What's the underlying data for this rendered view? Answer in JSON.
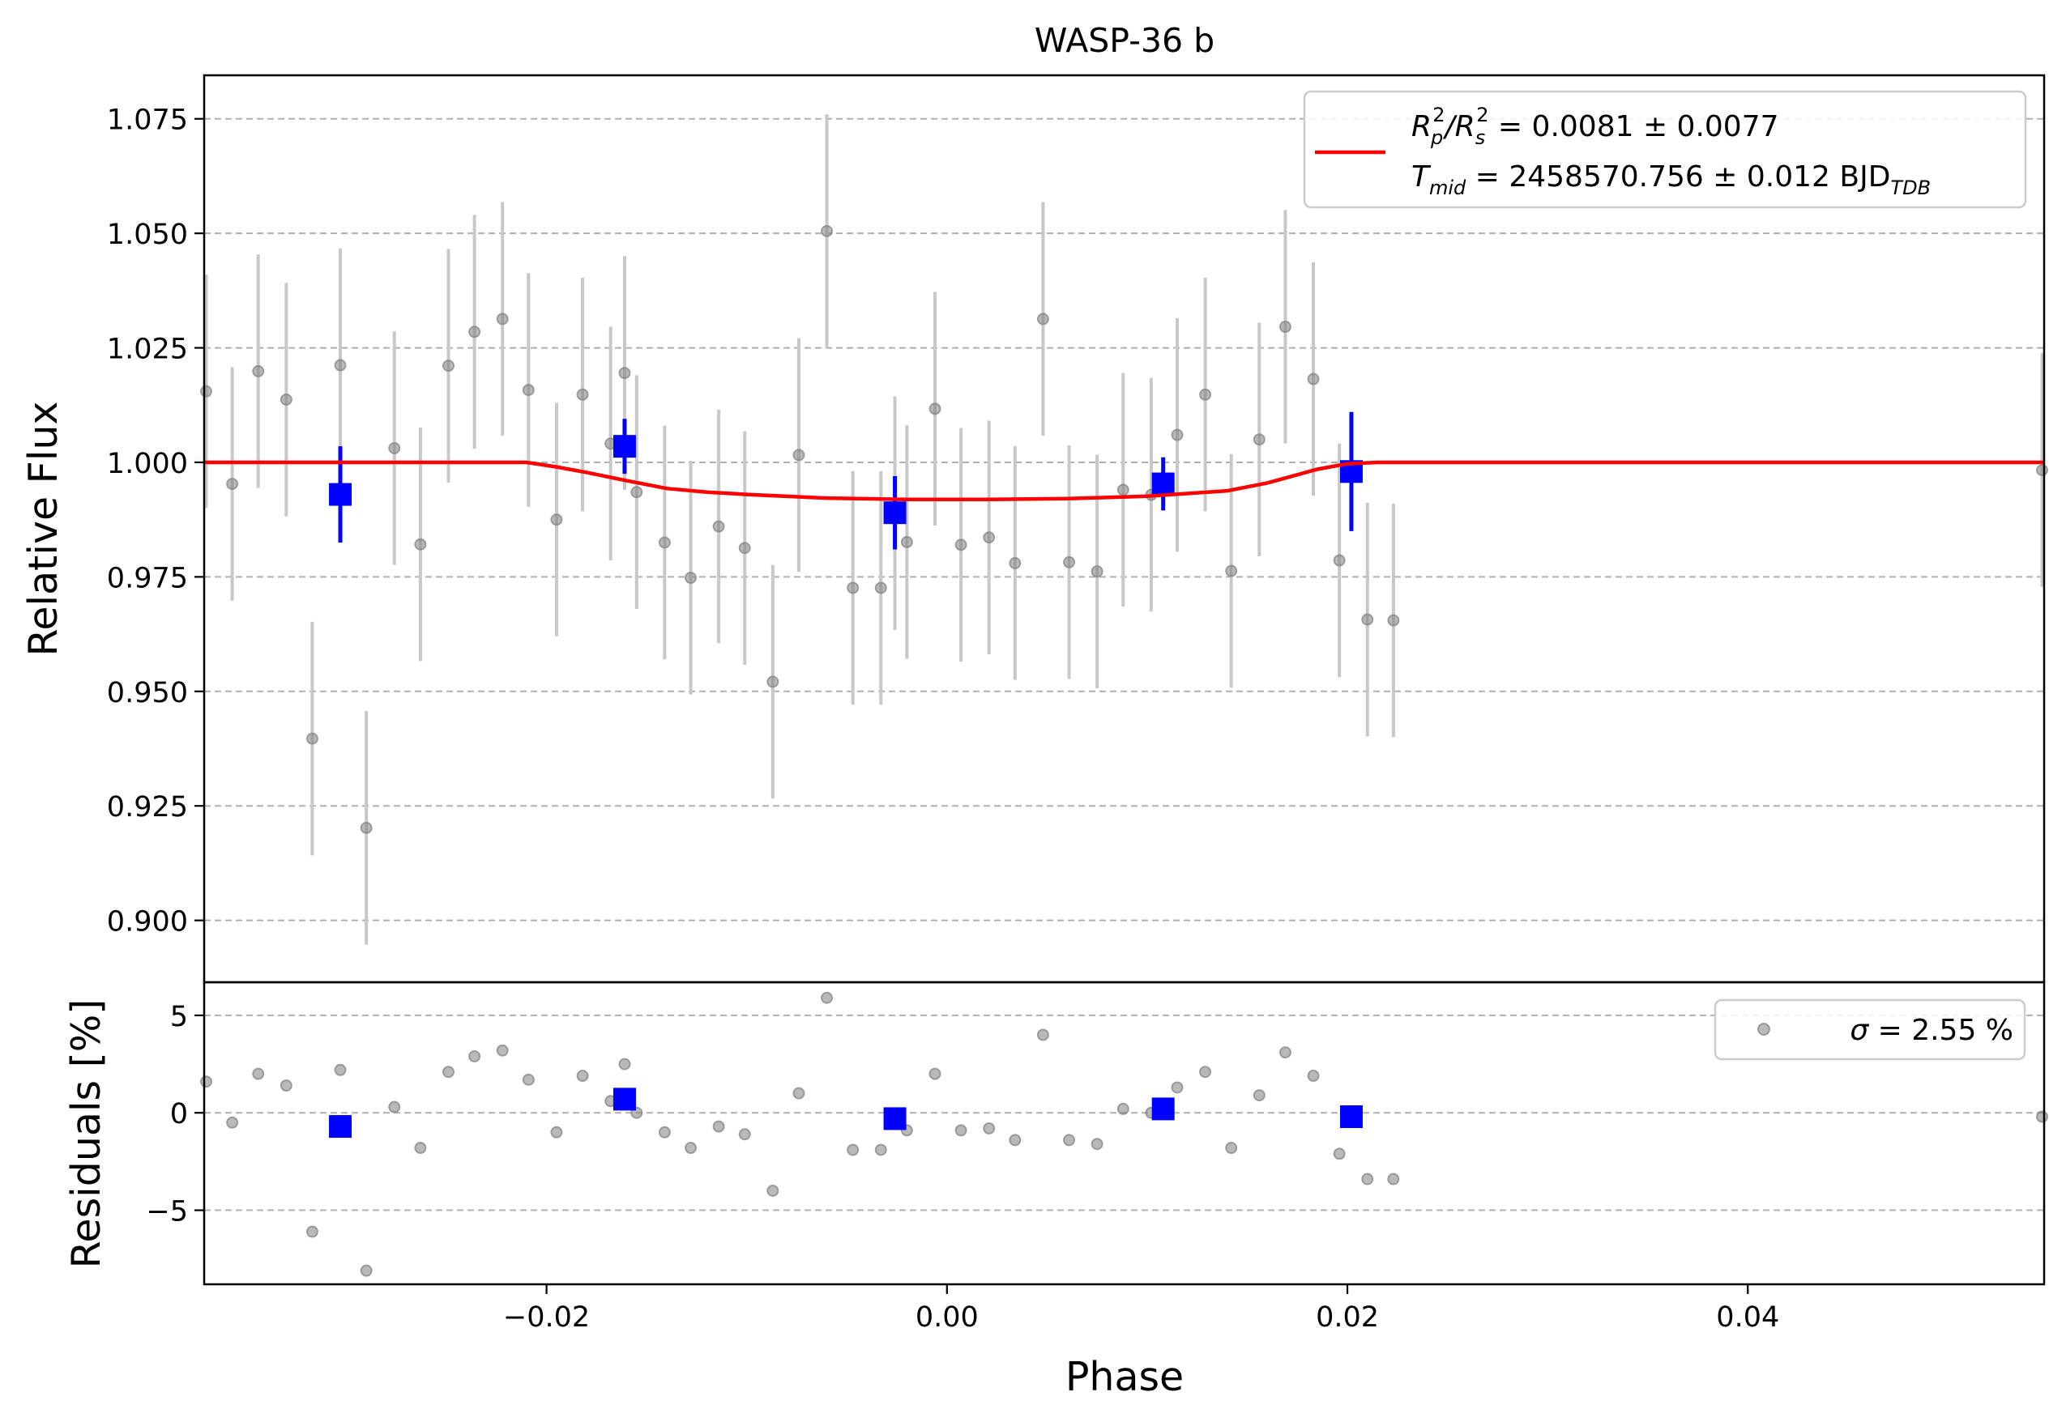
{
  "chart_data": {
    "type": "scatter",
    "title": "WASP-36 b",
    "xlabel": "Phase",
    "xlim": [
      -0.0371,
      0.0548
    ],
    "x_ticks": [
      -0.02,
      0.0,
      0.02,
      0.04
    ],
    "x_tick_labels": [
      "−0.02",
      "0.00",
      "0.02",
      "0.04"
    ],
    "top_panel": {
      "ylabel": "Relative Flux",
      "ylim": [
        0.8865,
        1.0845
      ],
      "y_ticks": [
        0.9,
        0.925,
        0.95,
        0.975,
        1.0,
        1.025,
        1.05,
        1.075
      ],
      "y_tick_labels": [
        "0.900",
        "0.925",
        "0.950",
        "0.975",
        "1.000",
        "1.025",
        "1.050",
        "1.075"
      ],
      "grid": "horizontal-dashed",
      "legend_position": "top-right",
      "legend": {
        "line1_parts": [
          "R",
          "p",
          "2",
          "/R",
          "s",
          "2",
          " = 0.0081 ± 0.0077"
        ],
        "line2_parts": [
          "T",
          "mid",
          " = 2458570.756 ± 0.012 BJD",
          "TDB"
        ]
      },
      "colors": {
        "data": "#808080",
        "errorbar": "#c8c8c8",
        "binned": "#0000ff",
        "model": "#ff0000"
      },
      "data": {
        "x": [
          -0.037,
          -0.0357,
          -0.0344,
          -0.033,
          -0.0317,
          -0.0303,
          -0.029,
          -0.0276,
          -0.0263,
          -0.0249,
          -0.0236,
          -0.0222,
          -0.0209,
          -0.0195,
          -0.0182,
          -0.0168,
          -0.0161,
          -0.0155,
          -0.0141,
          -0.0128,
          -0.0114,
          -0.0101,
          -0.0087,
          -0.0074,
          -0.006,
          -0.0047,
          -0.0033,
          -0.0026,
          -0.002,
          -0.0006,
          0.0007,
          0.0021,
          0.0034,
          0.0048,
          0.0061,
          0.0075,
          0.0088,
          0.0102,
          0.0115,
          0.0129,
          0.0142,
          0.0156,
          0.0169,
          0.0183,
          0.0196,
          0.021,
          0.0223,
          0.0547
        ],
        "y": [
          1.0155,
          0.9953,
          1.0199,
          1.0137,
          0.9397,
          1.0212,
          0.9202,
          1.0031,
          0.9821,
          1.0211,
          1.0285,
          1.0313,
          1.0158,
          0.9875,
          1.0148,
          1.0041,
          1.0195,
          0.9935,
          0.9825,
          0.9748,
          0.986,
          0.9813,
          0.9521,
          1.0016,
          1.0505,
          0.9726,
          0.9726,
          0.9889,
          0.9826,
          1.0117,
          0.982,
          0.9836,
          0.978,
          1.0313,
          0.9782,
          0.9762,
          0.994,
          0.9929,
          1.006,
          1.0148,
          0.9763,
          1.005,
          1.0296,
          1.0182,
          0.9786,
          0.9657,
          0.9655,
          0.9983
        ],
        "yerr": [
          0.0255,
          0.0255,
          0.0255,
          0.0255,
          0.0255,
          0.0255,
          0.0255,
          0.0255,
          0.0255,
          0.0255,
          0.0255,
          0.0255,
          0.0255,
          0.0255,
          0.0255,
          0.0255,
          0.0255,
          0.0255,
          0.0255,
          0.0255,
          0.0255,
          0.0255,
          0.0255,
          0.0255,
          0.0255,
          0.0255,
          0.0255,
          0.0255,
          0.0255,
          0.0255,
          0.0255,
          0.0255,
          0.0255,
          0.0255,
          0.0255,
          0.0255,
          0.0255,
          0.0255,
          0.0255,
          0.0255,
          0.0255,
          0.0255,
          0.0255,
          0.0255,
          0.0255,
          0.0255,
          0.0255,
          0.0255
        ]
      },
      "binned": {
        "x": [
          -0.0303,
          -0.0161,
          -0.0026,
          0.0108,
          0.0202
        ],
        "y": [
          0.993,
          1.0035,
          0.989,
          0.9953,
          0.998
        ],
        "yerr": [
          0.0105,
          0.006,
          0.008,
          0.0058,
          0.013
        ]
      },
      "model": {
        "x": [
          -0.0371,
          -0.021,
          -0.0195,
          -0.018,
          -0.016,
          -0.014,
          -0.012,
          -0.01,
          -0.006,
          -0.002,
          0.002,
          0.006,
          0.01,
          0.014,
          0.016,
          0.0185,
          0.02,
          0.0215,
          0.0548
        ],
        "y": [
          1.0,
          1.0,
          0.999,
          0.9978,
          0.996,
          0.9943,
          0.9935,
          0.993,
          0.9922,
          0.9919,
          0.9919,
          0.9921,
          0.9926,
          0.9938,
          0.9955,
          0.9985,
          0.9997,
          1.0,
          1.0
        ]
      }
    },
    "bottom_panel": {
      "ylabel": "Residuals [%]",
      "ylim": [
        -8.8,
        6.7
      ],
      "y_ticks": [
        -5,
        0,
        5
      ],
      "y_tick_labels": [
        "−5",
        "0",
        "5"
      ],
      "grid": "horizontal-dashed",
      "legend_position": "top-right",
      "legend": {
        "sigma_symbol": "σ",
        "sigma_text": " = 2.55 %"
      },
      "data": {
        "x": [
          -0.037,
          -0.0357,
          -0.0344,
          -0.033,
          -0.0317,
          -0.0303,
          -0.029,
          -0.0276,
          -0.0263,
          -0.0249,
          -0.0236,
          -0.0222,
          -0.0209,
          -0.0195,
          -0.0182,
          -0.0168,
          -0.0161,
          -0.0155,
          -0.0141,
          -0.0128,
          -0.0114,
          -0.0101,
          -0.0087,
          -0.0074,
          -0.006,
          -0.0047,
          -0.0033,
          -0.0026,
          -0.002,
          -0.0006,
          0.0007,
          0.0021,
          0.0034,
          0.0048,
          0.0061,
          0.0075,
          0.0088,
          0.0102,
          0.0115,
          0.0129,
          0.0142,
          0.0156,
          0.0169,
          0.0183,
          0.0196,
          0.021,
          0.0223,
          0.0547
        ],
        "y": [
          1.6,
          -0.5,
          2.0,
          1.4,
          -6.1,
          2.2,
          -8.1,
          0.3,
          -1.8,
          2.1,
          2.9,
          3.2,
          1.7,
          -1.0,
          1.9,
          0.6,
          2.5,
          0.0,
          -1.0,
          -1.8,
          -0.7,
          -1.1,
          -4.0,
          1.0,
          5.9,
          -1.9,
          -1.9,
          -0.3,
          -0.9,
          2.0,
          -0.9,
          -0.8,
          -1.4,
          4.0,
          -1.4,
          -1.6,
          0.2,
          0.0,
          1.3,
          2.1,
          -1.8,
          0.9,
          3.1,
          1.9,
          -2.1,
          -3.4,
          -3.4,
          -0.2
        ]
      },
      "binned": {
        "x": [
          -0.0303,
          -0.0161,
          -0.0026,
          0.0108,
          0.0202
        ],
        "y": [
          -0.7,
          0.7,
          -0.3,
          0.2,
          -0.2
        ]
      }
    }
  }
}
